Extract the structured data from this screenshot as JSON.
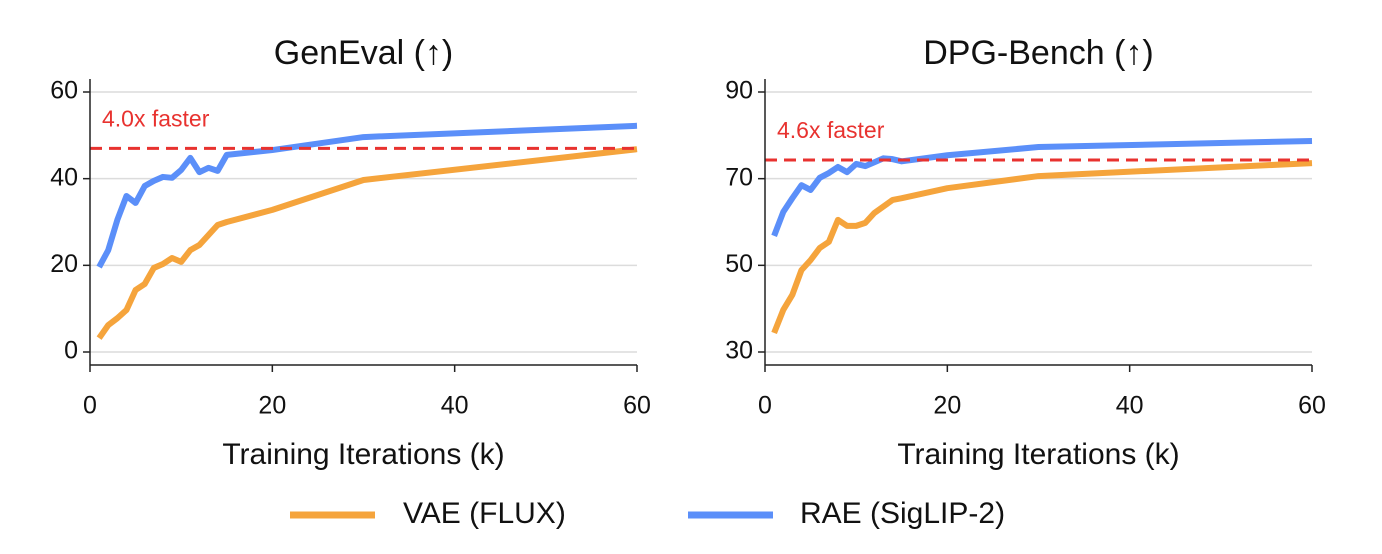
{
  "chart_data": [
    {
      "type": "line",
      "title": "GenEval (↑)",
      "x_label": "Training Iterations (k)",
      "x": [
        1,
        2,
        3,
        4,
        5,
        6,
        7,
        8,
        9,
        10,
        11,
        12,
        13,
        14,
        15,
        20,
        30,
        60
      ],
      "series": [
        {
          "name": "VAE (FLUX)",
          "color": "#f5a43c",
          "values": [
            3.2,
            6.2,
            7.8,
            9.7,
            14.3,
            15.7,
            19.4,
            20.3,
            21.7,
            20.8,
            23.5,
            24.7,
            27.0,
            29.3,
            30.0,
            32.8,
            39.7,
            46.8
          ]
        },
        {
          "name": "RAE (SigLIP-2)",
          "color": "#5b8ff9",
          "values": [
            19.6,
            23.5,
            30.5,
            36.0,
            34.4,
            38.3,
            39.5,
            40.4,
            40.2,
            42.0,
            44.8,
            41.5,
            42.5,
            41.8,
            45.5,
            46.6,
            49.6,
            52.2
          ]
        }
      ],
      "hline": {
        "y": 47,
        "label": "4.0x faster",
        "color": "#e8322f"
      },
      "xlim": [
        0,
        60
      ],
      "ylim": [
        -3,
        63
      ],
      "xticks": [
        0,
        20,
        40,
        60
      ],
      "yticks": [
        0,
        20,
        40,
        60
      ],
      "grid": true
    },
    {
      "type": "line",
      "title": "DPG-Bench (↑)",
      "x_label": "Training Iterations (k)",
      "x": [
        1,
        2,
        3,
        4,
        5,
        6,
        7,
        8,
        9,
        10,
        11,
        12,
        13,
        14,
        15,
        20,
        30,
        60
      ],
      "series": [
        {
          "name": "VAE (FLUX)",
          "color": "#f5a43c",
          "values": [
            34.4,
            39.7,
            43.2,
            48.9,
            51.2,
            54.0,
            55.4,
            60.5,
            59.1,
            59.1,
            59.8,
            62.1,
            63.6,
            65.1,
            65.5,
            67.8,
            70.6,
            73.6
          ]
        },
        {
          "name": "RAE (SigLIP-2)",
          "color": "#5b8ff9",
          "values": [
            56.8,
            62.3,
            65.5,
            68.5,
            67.4,
            70.2,
            71.3,
            72.7,
            71.5,
            73.4,
            72.9,
            73.8,
            74.7,
            74.5,
            74.0,
            75.4,
            77.3,
            78.7
          ]
        }
      ],
      "hline": {
        "y": 74.3,
        "label": "4.6x faster",
        "color": "#e8322f"
      },
      "xlim": [
        0,
        60
      ],
      "ylim": [
        27,
        93
      ],
      "xticks": [
        0,
        20,
        40,
        60
      ],
      "yticks": [
        30,
        50,
        70,
        90
      ],
      "grid": true
    }
  ]
}
